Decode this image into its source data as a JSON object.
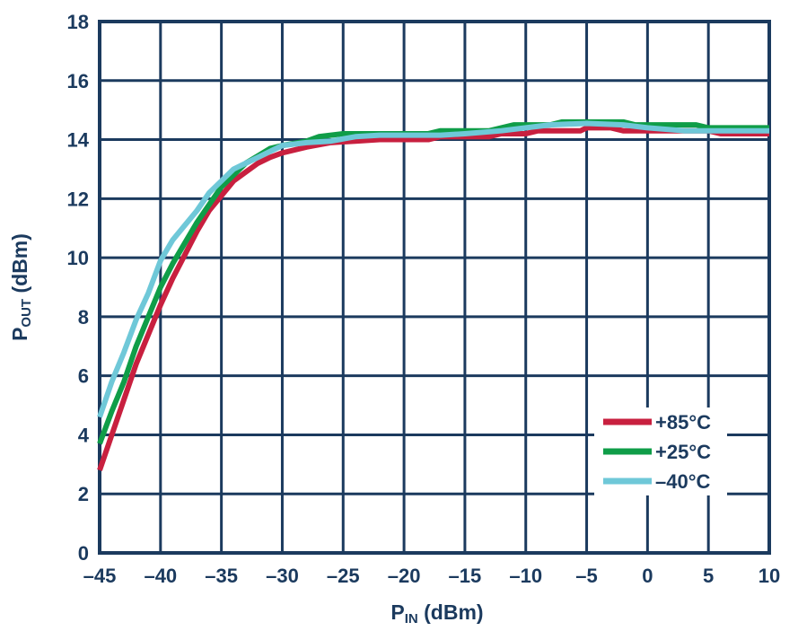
{
  "chart_data": {
    "type": "line",
    "xlabel_main": "P",
    "xlabel_sub": "IN",
    "xlabel_unit": " (dBm)",
    "ylabel_main": "P",
    "ylabel_sub": "OUT",
    "ylabel_unit": " (dBm)",
    "xlim": [
      -45,
      10
    ],
    "ylim": [
      0,
      18
    ],
    "xticks": [
      -45,
      -40,
      -35,
      -30,
      -25,
      -20,
      -15,
      -10,
      -5,
      0,
      5,
      10
    ],
    "xtick_labels": [
      "–45",
      "–40",
      "–35",
      "–30",
      "–25",
      "–20",
      "–15",
      "–10",
      "–5",
      "0",
      "5",
      "10"
    ],
    "yticks": [
      0,
      2,
      4,
      6,
      8,
      10,
      12,
      14,
      16,
      18
    ],
    "grid": true,
    "legend_position": "bottom-right",
    "colors": {
      "axis": "#1b3a5e"
    },
    "series": [
      {
        "name": "+85°C",
        "color": "#c8203f",
        "x": [
          -45,
          -44,
          -43,
          -42,
          -41,
          -40,
          -39,
          -38,
          -37,
          -36,
          -35,
          -34,
          -33,
          -32,
          -31,
          -30,
          -28,
          -26,
          -24,
          -22,
          -18,
          -17,
          -13,
          -12,
          -10,
          -9,
          -5.5,
          -5,
          -3,
          -2,
          3,
          5,
          6,
          10
        ],
        "y": [
          2.8,
          4.0,
          5.2,
          6.4,
          7.4,
          8.4,
          9.3,
          10.1,
          10.9,
          11.6,
          12.1,
          12.6,
          12.9,
          13.2,
          13.4,
          13.55,
          13.75,
          13.9,
          13.95,
          14.0,
          14.0,
          14.1,
          14.1,
          14.2,
          14.2,
          14.3,
          14.3,
          14.4,
          14.4,
          14.3,
          14.3,
          14.3,
          14.2,
          14.2
        ]
      },
      {
        "name": "+25°C",
        "color": "#0f9d48",
        "x": [
          -45,
          -44,
          -43,
          -42,
          -41,
          -40,
          -39,
          -38,
          -37,
          -36,
          -35,
          -34,
          -33,
          -32,
          -31,
          -30,
          -28,
          -27,
          -25,
          -18,
          -17,
          -13,
          -12,
          -11,
          -8,
          -7,
          -2,
          -1,
          4,
          5,
          10
        ],
        "y": [
          3.7,
          4.8,
          5.8,
          7.0,
          8.0,
          9.0,
          9.8,
          10.5,
          11.2,
          11.8,
          12.4,
          12.8,
          13.2,
          13.45,
          13.7,
          13.8,
          13.95,
          14.1,
          14.2,
          14.2,
          14.3,
          14.3,
          14.4,
          14.5,
          14.5,
          14.6,
          14.6,
          14.5,
          14.5,
          14.4,
          14.4
        ]
      },
      {
        "name": "–40°C",
        "color": "#6fc8d8",
        "x": [
          -45,
          -44,
          -43,
          -42,
          -41,
          -40,
          -39,
          -38,
          -37,
          -36,
          -35,
          -34,
          -33,
          -32,
          -31,
          -30,
          -28,
          -26,
          -24,
          -22,
          -17,
          -15,
          -12,
          -10,
          -8,
          -5,
          -2,
          0,
          3,
          10
        ],
        "y": [
          4.6,
          5.8,
          6.8,
          7.9,
          8.8,
          9.9,
          10.6,
          11.1,
          11.6,
          12.2,
          12.6,
          13.0,
          13.2,
          13.4,
          13.6,
          13.8,
          13.9,
          13.95,
          14.1,
          14.15,
          14.15,
          14.2,
          14.3,
          14.4,
          14.5,
          14.55,
          14.5,
          14.4,
          14.3,
          14.3
        ]
      }
    ]
  }
}
